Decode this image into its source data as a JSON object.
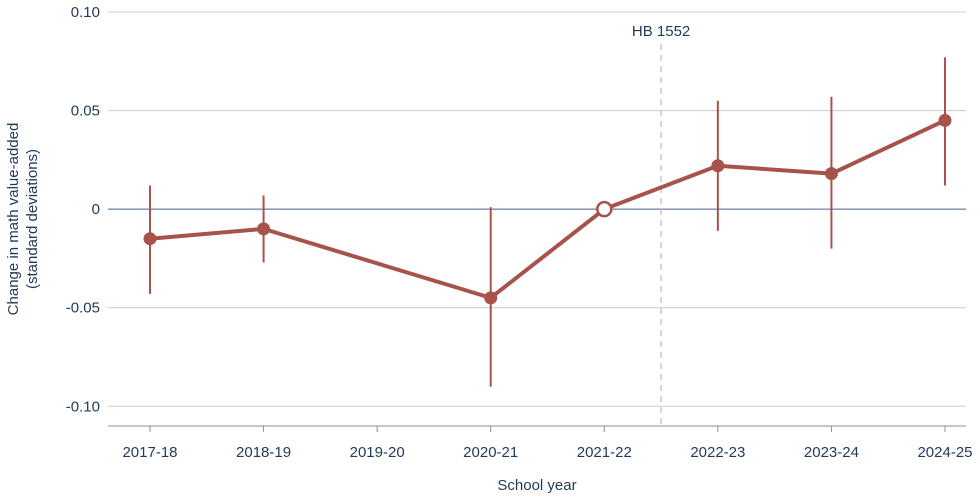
{
  "chart_data": {
    "type": "line",
    "categories": [
      "2017-18",
      "2018-19",
      "2019-20",
      "2020-21",
      "2021-22",
      "2022-23",
      "2023-24",
      "2024-25"
    ],
    "series": [
      {
        "values": [
          -0.015,
          -0.01,
          null,
          -0.045,
          0.0,
          0.022,
          0.018,
          0.045
        ],
        "ci_low": [
          -0.043,
          -0.027,
          null,
          -0.09,
          null,
          -0.011,
          -0.02,
          0.012
        ],
        "ci_high": [
          0.012,
          0.007,
          null,
          0.001,
          null,
          0.055,
          0.057,
          0.077
        ],
        "reference_category": "2021-22",
        "color": "#a8524c"
      }
    ],
    "ylim": [
      -0.11,
      0.1
    ],
    "yticks": [
      0.1,
      0.05,
      0,
      -0.05,
      -0.1
    ],
    "ytick_labels": [
      "0.10",
      "0.05",
      "0",
      "-0.05",
      "-0.10"
    ],
    "xlabel": "School year",
    "ylabel_lines": [
      "Change in math value-added",
      "(standard deviations)"
    ],
    "zero_line": true,
    "grid": "horizontal",
    "annotations": [
      {
        "text": "HB 1552",
        "type": "vertical-dashed-line",
        "between": [
          "2021-22",
          "2022-23"
        ]
      }
    ],
    "colors": {
      "series": "#a8524c",
      "grid": "#c8ccd3",
      "zero": "#7a8aa8",
      "text": "#1f3a5a",
      "annotation_line": "#bfbfbf"
    }
  }
}
